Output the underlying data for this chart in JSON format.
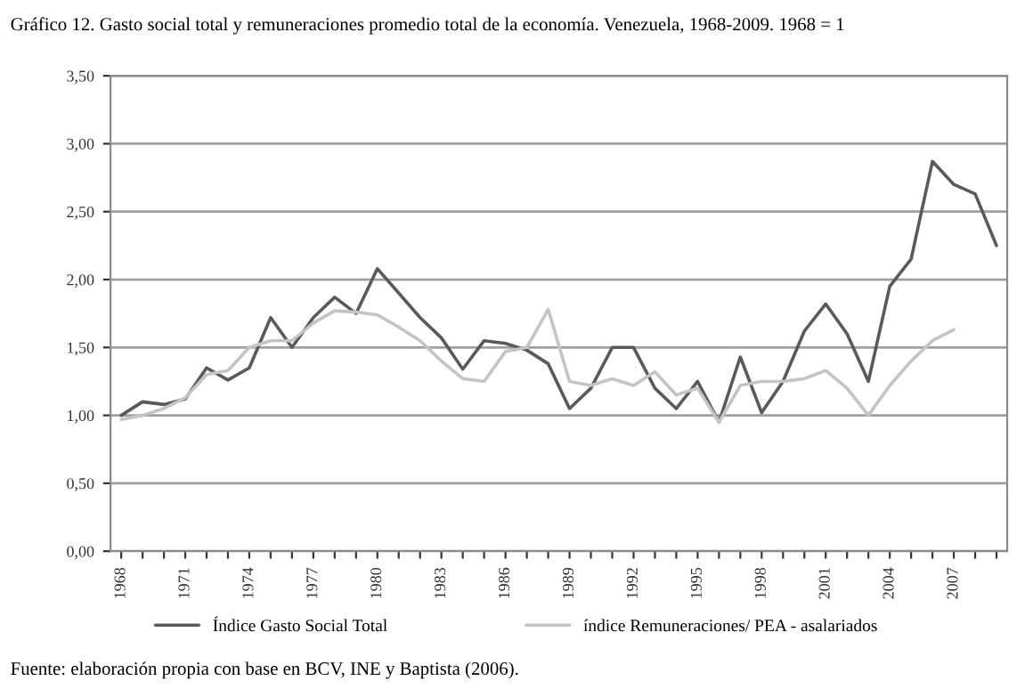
{
  "chart_data": {
    "type": "line",
    "title": "Gráfico 12. Gasto social total y remuneraciones promedio total de la economía. Venezuela, 1968-2009. 1968 = 1",
    "categories": [
      "1968",
      null,
      null,
      "1971",
      null,
      null,
      "1974",
      null,
      null,
      "1977",
      null,
      null,
      "1980",
      null,
      null,
      "1983",
      null,
      null,
      "1986",
      null,
      null,
      "1989",
      null,
      null,
      "1992",
      null,
      null,
      "1995",
      null,
      null,
      "1998",
      null,
      null,
      "2001",
      null,
      null,
      "2004",
      null,
      null,
      "2007",
      null,
      null
    ],
    "series": [
      {
        "name": "Índice Gasto Social Total",
        "color": "#5a5a5a",
        "values": [
          1.0,
          1.1,
          1.08,
          1.12,
          1.35,
          1.26,
          1.35,
          1.72,
          1.5,
          1.72,
          1.87,
          1.75,
          2.08,
          1.9,
          1.72,
          1.57,
          1.34,
          1.55,
          1.53,
          1.48,
          1.38,
          1.05,
          1.2,
          1.5,
          1.5,
          1.2,
          1.05,
          1.25,
          0.95,
          1.43,
          1.02,
          1.25,
          1.62,
          1.82,
          1.6,
          1.25,
          1.95,
          2.15,
          2.87,
          2.7,
          2.63,
          2.25
        ]
      },
      {
        "name": "índice Remuneraciones/ PEA - asalariados",
        "color": "#c4c4c4",
        "values": [
          0.97,
          1.0,
          1.05,
          1.13,
          1.3,
          1.33,
          1.5,
          1.55,
          1.55,
          1.68,
          1.77,
          1.76,
          1.74,
          1.65,
          1.55,
          1.4,
          1.27,
          1.25,
          1.47,
          1.5,
          1.78,
          1.25,
          1.22,
          1.27,
          1.22,
          1.32,
          1.15,
          1.2,
          0.95,
          1.22,
          1.25,
          1.25,
          1.27,
          1.33,
          1.2,
          1.0,
          1.22,
          1.4,
          1.55,
          1.63,
          null,
          null
        ]
      }
    ],
    "ylim": [
      0,
      3.5
    ],
    "yticks": [
      {
        "value": 0,
        "label": "0,00"
      },
      {
        "value": 0.5,
        "label": "0,50"
      },
      {
        "value": 1,
        "label": "1,00"
      },
      {
        "value": 1.5,
        "label": "1,50"
      },
      {
        "value": 2,
        "label": "2,00"
      },
      {
        "value": 2.5,
        "label": "2,50"
      },
      {
        "value": 3,
        "label": "3,00"
      },
      {
        "value": 3.5,
        "label": "3,50"
      }
    ],
    "grid": "y",
    "legend": "bottom",
    "marker": "none",
    "line_style": "solid",
    "annotations": [
      "Fuente: elaboración propia con base en BCV, INE y Baptista (2006)."
    ]
  }
}
